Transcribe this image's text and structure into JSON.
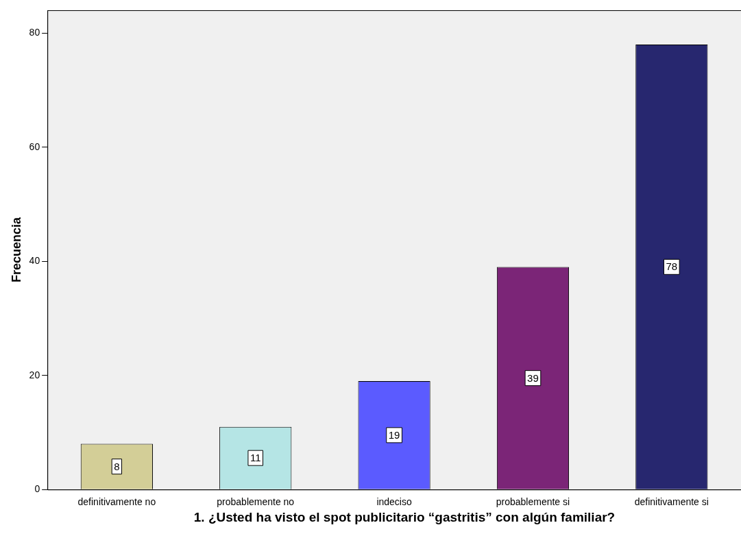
{
  "chart_data": {
    "type": "bar",
    "xlabel": "1. ¿Usted ha visto el spot publicitario “gastritis” con algún familiar?",
    "ylabel": "Frecuencia",
    "categories": [
      "definitivamente no",
      "probablemente no",
      "indeciso",
      "probablemente si",
      "definitivamente si"
    ],
    "values": [
      8,
      11,
      19,
      39,
      78
    ],
    "colors": [
      "#d3ce97",
      "#b5e5e5",
      "#5b5bff",
      "#7b2577",
      "#27276f"
    ],
    "ylim": [
      0,
      84
    ],
    "yticks": [
      0,
      20,
      40,
      60,
      80
    ],
    "grid": false,
    "legend": false,
    "data_labels": true
  }
}
